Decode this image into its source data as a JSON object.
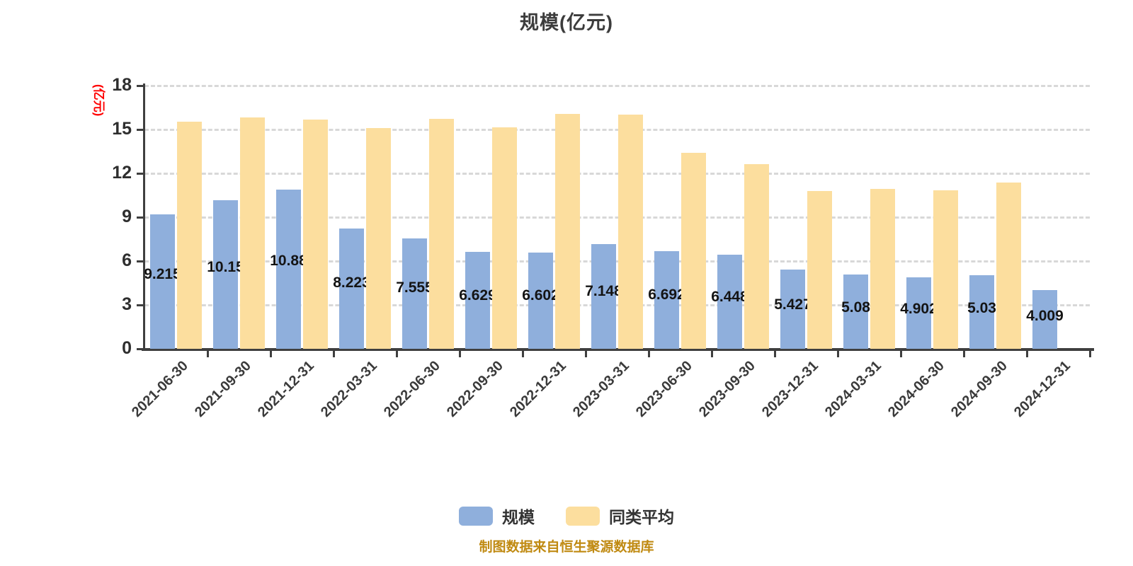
{
  "title": "规模(亿元)",
  "y_axis_name": "(亿元)",
  "footer": "制图数据来自恒生聚源数据库",
  "legend": [
    {
      "label": "规模",
      "color": "#8fafdc"
    },
    {
      "label": "同类平均",
      "color": "#fcde9e"
    }
  ],
  "colors": {
    "axis": "#3f3f3f",
    "grid": "#d8d8d8",
    "y_axis_name": "#ff0000",
    "footer_text": "#c08a12",
    "bar_scale": "#8fafdc",
    "bar_peer_average": "#fcde9e"
  },
  "chart_data": {
    "type": "bar",
    "title": "规模(亿元)",
    "xlabel": "",
    "ylabel": "(亿元)",
    "ylim": [
      0,
      18
    ],
    "yticks": [
      0,
      3,
      6,
      9,
      12,
      15,
      18
    ],
    "grid": "horizontal-dashed",
    "legend_position": "bottom-center",
    "categories": [
      "2021-06-30",
      "2021-09-30",
      "2021-12-31",
      "2022-03-31",
      "2022-06-30",
      "2022-09-30",
      "2022-12-31",
      "2023-03-31",
      "2023-06-30",
      "2023-09-30",
      "2023-12-31",
      "2024-03-31",
      "2024-06-30",
      "2024-09-30",
      "2024-12-31"
    ],
    "series": [
      {
        "name": "规模",
        "color": "#8fafdc",
        "values": [
          9.215,
          10.15,
          10.88,
          8.223,
          7.555,
          6.629,
          6.602,
          7.148,
          6.692,
          6.448,
          5.427,
          5.08,
          4.902,
          5.03,
          4.009
        ],
        "labels": [
          "9.215",
          "10.15",
          "10.88",
          "8.223",
          "7.555",
          "6.629",
          "6.602",
          "7.148",
          "6.692",
          "6.448",
          "5.427",
          "5.08",
          "4.902",
          "5.03",
          "4.009"
        ]
      },
      {
        "name": "同类平均",
        "color": "#fcde9e",
        "values": [
          15.53,
          15.82,
          15.66,
          15.12,
          15.74,
          15.15,
          16.05,
          16.04,
          13.4,
          12.64,
          10.81,
          10.93,
          10.85,
          11.36,
          null
        ],
        "labels": null
      }
    ]
  }
}
